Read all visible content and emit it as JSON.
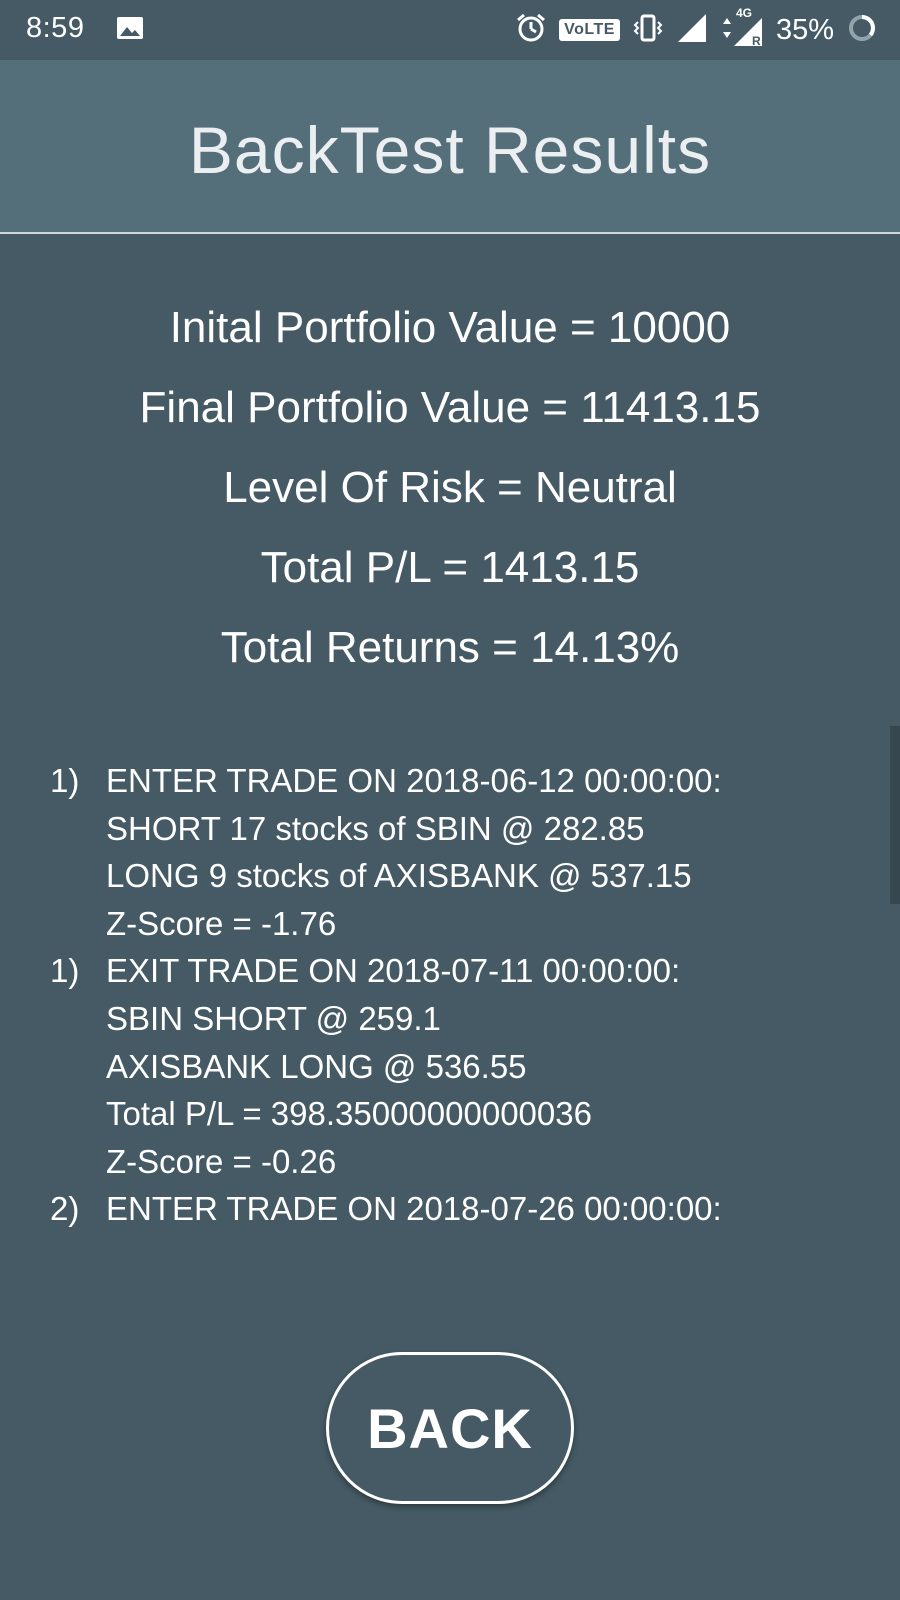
{
  "status_bar": {
    "time": "8:59",
    "volte": "VoLTE",
    "network": "4G",
    "roaming": "R",
    "battery": "35%"
  },
  "header": {
    "title": "BackTest Results"
  },
  "summary": {
    "initial": "Inital Portfolio Value = 10000",
    "final": "Final Portfolio Value = 11413.15",
    "risk": "Level Of Risk = Neutral",
    "total_pl": "Total P/L = 1413.15",
    "total_returns": "Total Returns = 14.13%"
  },
  "trades": [
    {
      "num": "1)",
      "lines": [
        "ENTER TRADE ON 2018-06-12 00:00:00:",
        "SHORT 17 stocks of SBIN @ 282.85",
        "LONG 9 stocks of AXISBANK @ 537.15",
        "Z-Score = -1.76"
      ]
    },
    {
      "num": "1)",
      "lines": [
        "EXIT TRADE ON 2018-07-11 00:00:00:",
        "SBIN SHORT @ 259.1",
        "AXISBANK LONG @ 536.55",
        "Total P/L = 398.35000000000036",
        "Z-Score = -0.26"
      ]
    },
    {
      "num": "2)",
      "lines": [
        "ENTER TRADE ON 2018-07-26 00:00:00:"
      ]
    }
  ],
  "back_button": {
    "label": "BACK"
  },
  "colors": {
    "background": "#455a64",
    "header": "#546e7a",
    "text": "#ffffff"
  },
  "icons": {
    "gallery": "image-icon",
    "alarm": "alarm-icon",
    "vibrate": "vibrate-icon",
    "signal": "signal-icon",
    "data": "data-arrows-icon",
    "battery": "battery-icon"
  }
}
